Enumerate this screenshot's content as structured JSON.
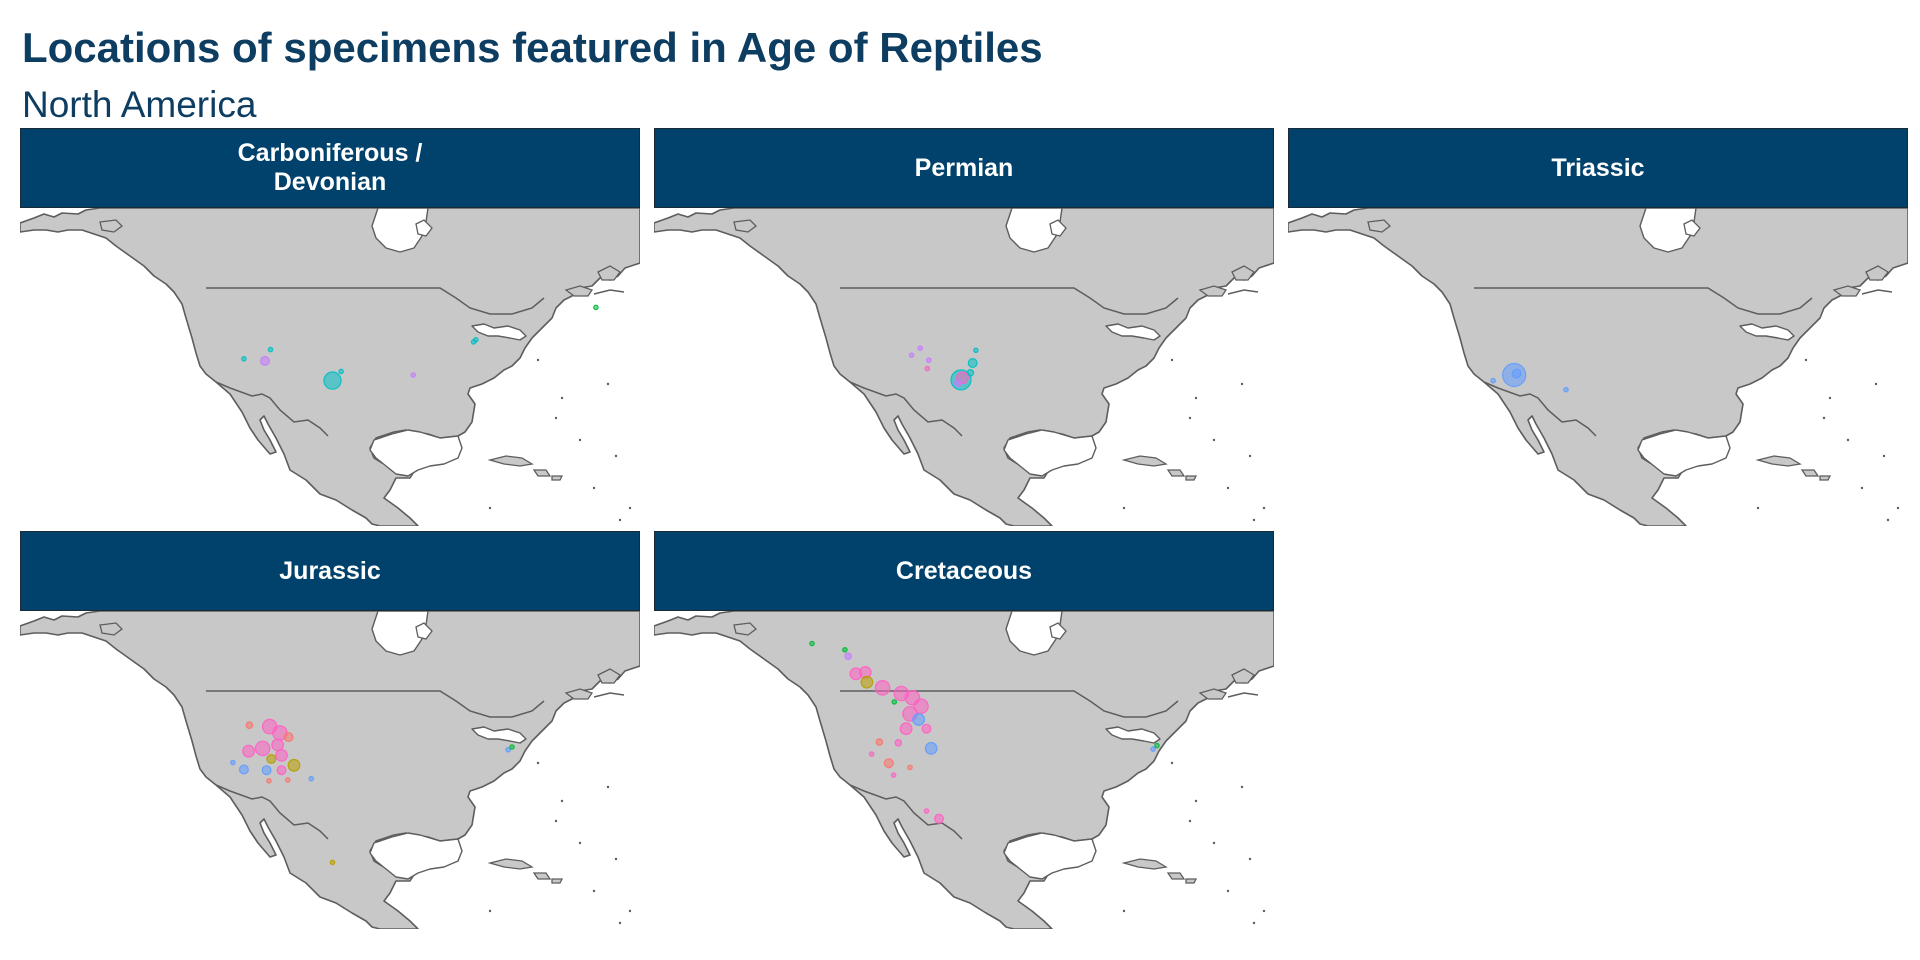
{
  "title": "Locations of specimens featured in Age of Reptiles",
  "subtitle": "North America",
  "colors": {
    "header": "#00426b",
    "title": "#0e3d62",
    "land": "#c8c8c8",
    "coast": "#5d5d5d",
    "teal": "#00bfc4",
    "blue": "#619cff",
    "purple": "#c77cff",
    "pink": "#ff61c3",
    "salmon": "#f8766d",
    "olive": "#b79f00",
    "green": "#00ba38"
  },
  "panels": [
    {
      "label": "Carboniferous /\nDevonian",
      "specimens": [
        {
          "lon": -109.2,
          "lat": 38.3,
          "size": 1,
          "color": "teal"
        },
        {
          "lon": -105.8,
          "lat": 39.6,
          "size": 1,
          "color": "teal"
        },
        {
          "lon": -106.5,
          "lat": 38.0,
          "size": 3,
          "color": "purple"
        },
        {
          "lon": -97.9,
          "lat": 35.2,
          "size": 6,
          "color": "teal"
        },
        {
          "lon": -96.8,
          "lat": 36.5,
          "size": 1,
          "color": "teal"
        },
        {
          "lon": -87.6,
          "lat": 36.0,
          "size": 1,
          "color": "purple"
        },
        {
          "lon": -79.9,
          "lat": 40.7,
          "size": 1,
          "color": "teal"
        },
        {
          "lon": -79.6,
          "lat": 41.0,
          "size": 1,
          "color": "teal"
        },
        {
          "lon": -64.3,
          "lat": 45.6,
          "size": 1,
          "color": "green"
        }
      ]
    },
    {
      "label": "Permian",
      "specimens": [
        {
          "lon": -104.9,
          "lat": 38.8,
          "size": 1,
          "color": "purple"
        },
        {
          "lon": -103.8,
          "lat": 39.8,
          "size": 1,
          "color": "purple"
        },
        {
          "lon": -102.7,
          "lat": 38.1,
          "size": 1,
          "color": "purple"
        },
        {
          "lon": -102.9,
          "lat": 36.9,
          "size": 1,
          "color": "pink"
        },
        {
          "lon": -97.1,
          "lat": 37.7,
          "size": 3,
          "color": "teal"
        },
        {
          "lon": -97.4,
          "lat": 36.3,
          "size": 2,
          "color": "teal"
        },
        {
          "lon": -96.7,
          "lat": 39.5,
          "size": 1,
          "color": "teal"
        },
        {
          "lon": -98.6,
          "lat": 35.3,
          "size": 7,
          "color": "teal"
        },
        {
          "lon": -98.4,
          "lat": 35.6,
          "size": 4,
          "color": "pink"
        },
        {
          "lon": -99.0,
          "lat": 34.8,
          "size": 2,
          "color": "purple"
        }
      ]
    },
    {
      "label": "Triassic",
      "specimens": [
        {
          "lon": -108.9,
          "lat": 36.0,
          "size": 8,
          "color": "blue"
        },
        {
          "lon": -108.6,
          "lat": 36.2,
          "size": 3,
          "color": "blue"
        },
        {
          "lon": -111.6,
          "lat": 35.2,
          "size": 1,
          "color": "blue"
        },
        {
          "lon": -102.3,
          "lat": 33.9,
          "size": 1,
          "color": "blue"
        }
      ]
    },
    {
      "label": "Jurassic",
      "specimens": [
        {
          "lon": -108.5,
          "lat": 43.5,
          "size": 2,
          "color": "salmon"
        },
        {
          "lon": -105.9,
          "lat": 43.3,
          "size": 5,
          "color": "pink"
        },
        {
          "lon": -104.6,
          "lat": 42.4,
          "size": 5,
          "color": "pink"
        },
        {
          "lon": -103.5,
          "lat": 41.8,
          "size": 3,
          "color": "salmon"
        },
        {
          "lon": -104.9,
          "lat": 40.7,
          "size": 4,
          "color": "pink"
        },
        {
          "lon": -106.8,
          "lat": 40.2,
          "size": 5,
          "color": "pink"
        },
        {
          "lon": -108.6,
          "lat": 39.8,
          "size": 4,
          "color": "pink"
        },
        {
          "lon": -104.4,
          "lat": 39.2,
          "size": 4,
          "color": "pink"
        },
        {
          "lon": -105.7,
          "lat": 38.7,
          "size": 3,
          "color": "olive"
        },
        {
          "lon": -102.8,
          "lat": 37.8,
          "size": 4,
          "color": "olive"
        },
        {
          "lon": -104.4,
          "lat": 37.1,
          "size": 3,
          "color": "pink"
        },
        {
          "lon": -106.3,
          "lat": 37.1,
          "size": 3,
          "color": "blue"
        },
        {
          "lon": -109.2,
          "lat": 37.2,
          "size": 3,
          "color": "blue"
        },
        {
          "lon": -110.6,
          "lat": 38.2,
          "size": 1,
          "color": "blue"
        },
        {
          "lon": -100.6,
          "lat": 35.9,
          "size": 1,
          "color": "blue"
        },
        {
          "lon": -106.0,
          "lat": 35.6,
          "size": 1,
          "color": "salmon"
        },
        {
          "lon": -103.6,
          "lat": 35.7,
          "size": 1,
          "color": "salmon"
        },
        {
          "lon": -75.5,
          "lat": 40.0,
          "size": 1,
          "color": "blue"
        },
        {
          "lon": -75.0,
          "lat": 40.4,
          "size": 1,
          "color": "green"
        },
        {
          "lon": -97.9,
          "lat": 24.0,
          "size": 1,
          "color": "olive"
        }
      ]
    },
    {
      "label": "Cretaceous",
      "specimens": [
        {
          "lon": -117.6,
          "lat": 55.1,
          "size": 1,
          "color": "green"
        },
        {
          "lon": -113.4,
          "lat": 54.2,
          "size": 1,
          "color": "green"
        },
        {
          "lon": -113.0,
          "lat": 53.3,
          "size": 2,
          "color": "purple"
        },
        {
          "lon": -112.0,
          "lat": 50.8,
          "size": 4,
          "color": "pink"
        },
        {
          "lon": -110.8,
          "lat": 51.0,
          "size": 4,
          "color": "pink"
        },
        {
          "lon": -110.6,
          "lat": 49.6,
          "size": 4,
          "color": "olive"
        },
        {
          "lon": -108.6,
          "lat": 48.8,
          "size": 5,
          "color": "pink"
        },
        {
          "lon": -106.2,
          "lat": 48.0,
          "size": 5,
          "color": "pink"
        },
        {
          "lon": -104.8,
          "lat": 47.4,
          "size": 5,
          "color": "pink"
        },
        {
          "lon": -103.7,
          "lat": 46.2,
          "size": 5,
          "color": "pink"
        },
        {
          "lon": -105.1,
          "lat": 45.1,
          "size": 5,
          "color": "pink"
        },
        {
          "lon": -104.0,
          "lat": 44.3,
          "size": 4,
          "color": "blue"
        },
        {
          "lon": -105.6,
          "lat": 43.0,
          "size": 4,
          "color": "pink"
        },
        {
          "lon": -103.0,
          "lat": 43.0,
          "size": 3,
          "color": "pink"
        },
        {
          "lon": -102.4,
          "lat": 40.2,
          "size": 4,
          "color": "blue"
        },
        {
          "lon": -109.0,
          "lat": 41.1,
          "size": 2,
          "color": "salmon"
        },
        {
          "lon": -106.6,
          "lat": 41.0,
          "size": 2,
          "color": "pink"
        },
        {
          "lon": -110.0,
          "lat": 39.4,
          "size": 1,
          "color": "pink"
        },
        {
          "lon": -107.8,
          "lat": 38.1,
          "size": 3,
          "color": "salmon"
        },
        {
          "lon": -107.2,
          "lat": 36.4,
          "size": 1,
          "color": "pink"
        },
        {
          "lon": -105.1,
          "lat": 37.5,
          "size": 1,
          "color": "salmon"
        },
        {
          "lon": -103.0,
          "lat": 31.3,
          "size": 1,
          "color": "pink"
        },
        {
          "lon": -101.4,
          "lat": 30.2,
          "size": 3,
          "color": "pink"
        },
        {
          "lon": -107.1,
          "lat": 46.8,
          "size": 1,
          "color": "green"
        },
        {
          "lon": -74.1,
          "lat": 40.1,
          "size": 1,
          "color": "blue"
        },
        {
          "lon": -73.6,
          "lat": 40.6,
          "size": 1,
          "color": "green"
        }
      ]
    }
  ]
}
